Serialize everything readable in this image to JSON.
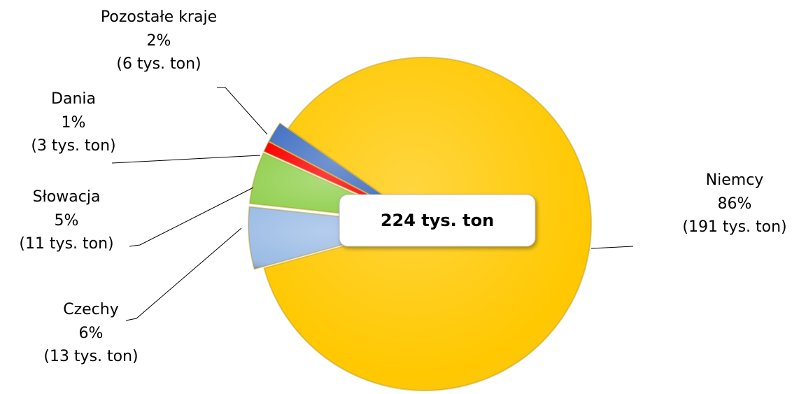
{
  "chart_data": {
    "type": "pie",
    "categories": [
      "Niemcy",
      "Czechy",
      "Słowacja",
      "Dania",
      "Pozostałe kraje"
    ],
    "values": [
      86,
      6,
      5,
      1,
      2
    ],
    "value_labels": [
      "86%",
      "6%",
      "5%",
      "1%",
      "2%"
    ],
    "tonnes": [
      191,
      13,
      11,
      3,
      6
    ],
    "tonne_labels": [
      "(191 tys. ton)",
      "(13 tys. ton)",
      "(11 tys. ton)",
      "(3 tys. ton)",
      "(6 tys. ton)"
    ],
    "colors": [
      "#ffc800",
      "#9dbde6",
      "#92d050",
      "#ff0000",
      "#4472c4"
    ],
    "center_label": "224 tys. ton"
  }
}
